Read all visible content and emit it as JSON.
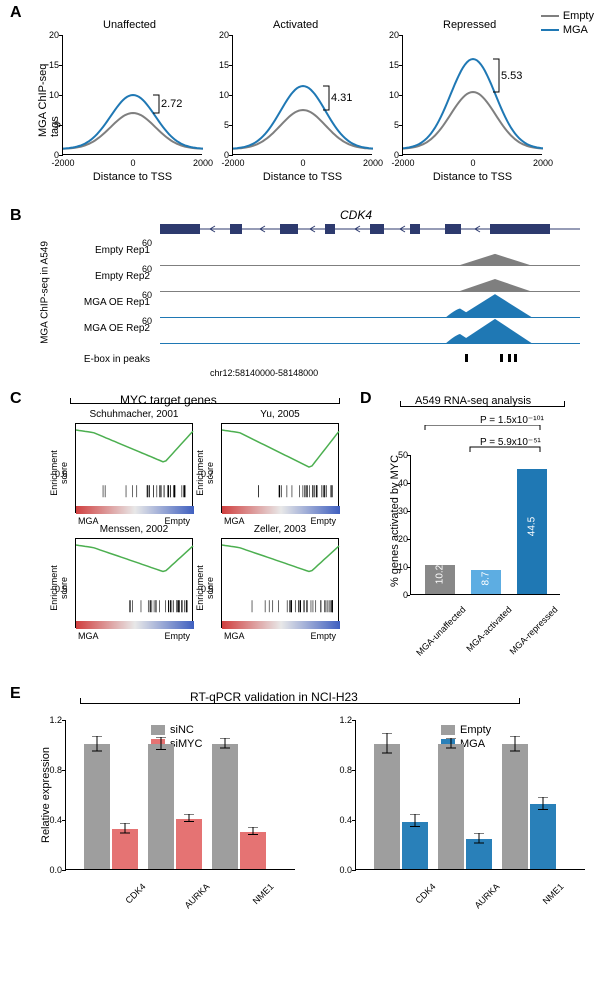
{
  "colors": {
    "empty": "#7f7f7f",
    "mga": "#1f78b4",
    "mga_peak": "#1f5f8f",
    "gene_model": "#2d3a6e",
    "gsea_line": "#4caf50",
    "bar_d_1": "#888888",
    "bar_d_2": "#5dade2",
    "bar_d_3": "#1f78b4",
    "sinc": "#9e9e9e",
    "simyc": "#e57373",
    "empty_e": "#9e9e9e",
    "mga_e": "#2980b9"
  },
  "panelA": {
    "y_label": "MGA ChIP-seq tags",
    "x_label": "Distance to TSS",
    "y_max": 20,
    "y_ticks": [
      0,
      5,
      10,
      15,
      20
    ],
    "x_ticks": [
      -2000,
      0,
      2000
    ],
    "charts": [
      {
        "title": "Unaffected",
        "diff": "2.72",
        "empty_peak": 7,
        "mga_peak": 10
      },
      {
        "title": "Activated",
        "diff": "4.31",
        "empty_peak": 7.5,
        "mga_peak": 11.5
      },
      {
        "title": "Repressed",
        "diff": "5.53",
        "empty_peak": 10.5,
        "mga_peak": 16
      }
    ],
    "legend": {
      "empty": "Empty",
      "mga": "MGA"
    }
  },
  "panelB": {
    "gene": "CDK4",
    "y_max": 60,
    "side_label": "MGA ChIP-seq in A549",
    "tracks": [
      {
        "label": "Empty Rep1",
        "color": "#7f7f7f",
        "peak": 28
      },
      {
        "label": "Empty Rep2",
        "color": "#7f7f7f",
        "peak": 30
      },
      {
        "label": "MGA OE Rep1",
        "color": "#1f78b4",
        "peak": 55
      },
      {
        "label": "MGA OE Rep2",
        "color": "#1f78b4",
        "peak": 58
      }
    ],
    "ebox_label": "E-box in peaks",
    "region": "chr12:58140000-58148000"
  },
  "panelC": {
    "header": "MYC target genes",
    "y_label": "Enrichment\nscore",
    "plots": [
      {
        "title": "Schuhmacher, 2001",
        "min": -0.6
      },
      {
        "title": "Yu, 2005",
        "min": -0.7
      },
      {
        "title": "Menssen, 2002",
        "min": -0.5
      },
      {
        "title": "Zeller, 2003",
        "min": -0.5
      }
    ],
    "x_left": "MGA",
    "x_right": "Empty"
  },
  "panelD": {
    "title": "A549 RNA-seq analysis",
    "y_label": "% genes activated by MYC",
    "y_max": 50,
    "p1": "P = 5.9x10⁻⁵¹",
    "p2": "P = 1.5x10⁻¹⁰¹",
    "bars": [
      {
        "label": "MGA-unaffected",
        "value": 10.2,
        "color": "#888888"
      },
      {
        "label": "MGA-activated",
        "value": 8.7,
        "color": "#5dade2"
      },
      {
        "label": "MGA-repressed",
        "value": 44.5,
        "color": "#1f78b4"
      }
    ]
  },
  "panelE": {
    "title": "RT-qPCR validation in NCI-H23",
    "y_label": "Relative expression",
    "y_max": 1.2,
    "y_ticks": [
      0.0,
      0.4,
      0.8,
      1.2
    ],
    "genes": [
      "CDK4",
      "AURKA",
      "NME1"
    ],
    "left": {
      "legend": {
        "a": "siNC",
        "b": "siMYC"
      },
      "colors": {
        "a": "#9e9e9e",
        "b": "#e57373"
      },
      "data": [
        {
          "a": 1.0,
          "a_err": 0.06,
          "b": 0.32,
          "b_err": 0.04
        },
        {
          "a": 1.0,
          "a_err": 0.05,
          "b": 0.4,
          "b_err": 0.03
        },
        {
          "a": 1.0,
          "a_err": 0.04,
          "b": 0.3,
          "b_err": 0.03
        }
      ]
    },
    "right": {
      "legend": {
        "a": "Empty",
        "b": "MGA"
      },
      "colors": {
        "a": "#9e9e9e",
        "b": "#2980b9"
      },
      "data": [
        {
          "a": 1.0,
          "a_err": 0.08,
          "b": 0.38,
          "b_err": 0.05
        },
        {
          "a": 1.0,
          "a_err": 0.04,
          "b": 0.24,
          "b_err": 0.04
        },
        {
          "a": 1.0,
          "a_err": 0.06,
          "b": 0.52,
          "b_err": 0.05
        }
      ]
    }
  }
}
